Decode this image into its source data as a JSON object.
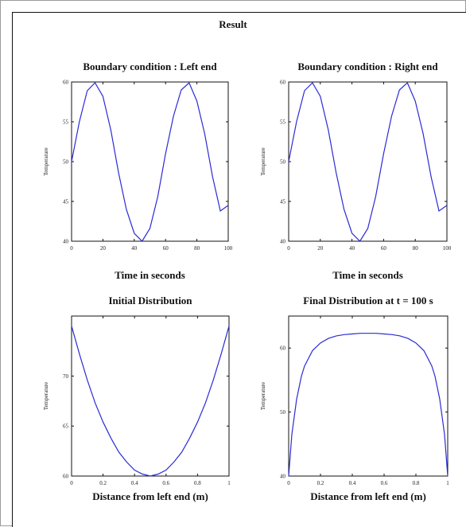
{
  "figure": {
    "title": "Result"
  },
  "chart_data": [
    {
      "type": "line",
      "title": "Boundary condition : Left end",
      "xlabel": "Time in seconds",
      "ylabel": "Temperature",
      "xlim": [
        0,
        100
      ],
      "ylim": [
        40,
        60
      ],
      "xticks": [
        0,
        20,
        40,
        60,
        80,
        100
      ],
      "yticks": [
        40,
        45,
        50,
        55,
        60
      ],
      "grid": false,
      "series": [
        {
          "x": [
            0,
            5,
            10,
            15,
            20,
            25,
            30,
            35,
            40,
            45,
            50,
            55,
            60,
            65,
            70,
            75,
            80,
            85,
            90,
            95,
            100
          ],
          "y": [
            50,
            55.0,
            58.9,
            59.9,
            58.2,
            54.0,
            48.6,
            44.0,
            41.0,
            40.0,
            41.6,
            45.6,
            51.0,
            55.7,
            59.0,
            59.9,
            57.6,
            53.5,
            48.1,
            43.8,
            44.5
          ]
        }
      ]
    },
    {
      "type": "line",
      "title": "Boundary condition : Right end",
      "xlabel": "Time in seconds",
      "ylabel": "Temperature",
      "xlim": [
        0,
        100
      ],
      "ylim": [
        40,
        60
      ],
      "xticks": [
        0,
        20,
        40,
        60,
        80,
        100
      ],
      "yticks": [
        40,
        45,
        50,
        55,
        60
      ],
      "grid": false,
      "series": [
        {
          "x": [
            0,
            5,
            10,
            15,
            20,
            25,
            30,
            35,
            40,
            45,
            50,
            55,
            60,
            65,
            70,
            75,
            80,
            85,
            90,
            95,
            100
          ],
          "y": [
            50,
            55.0,
            58.9,
            59.9,
            58.2,
            54.0,
            48.6,
            44.0,
            41.0,
            40.0,
            41.6,
            45.6,
            51.0,
            55.7,
            59.0,
            59.9,
            57.6,
            53.5,
            48.1,
            43.8,
            44.5
          ]
        }
      ]
    },
    {
      "type": "line",
      "title": "Initial Distribution",
      "xlabel": "Distance from left end (m)",
      "ylabel": "Temperature",
      "xlim": [
        0,
        1
      ],
      "ylim": [
        60,
        76
      ],
      "xticks": [
        0,
        0.2,
        0.4,
        0.6,
        0.8,
        1
      ],
      "yticks": [
        60,
        65,
        70
      ],
      "grid": false,
      "series": [
        {
          "x": [
            0,
            0.05,
            0.1,
            0.15,
            0.2,
            0.25,
            0.3,
            0.35,
            0.4,
            0.45,
            0.5,
            0.55,
            0.6,
            0.65,
            0.7,
            0.75,
            0.8,
            0.85,
            0.9,
            0.95,
            1
          ],
          "y": [
            75,
            72.2,
            69.6,
            67.3,
            65.4,
            63.8,
            62.4,
            61.4,
            60.6,
            60.2,
            60,
            60.2,
            60.6,
            61.4,
            62.4,
            63.8,
            65.4,
            67.3,
            69.6,
            72.2,
            75
          ]
        }
      ]
    },
    {
      "type": "line",
      "title": "Final Distribution at t = 100 s",
      "xlabel": "Distance from left end (m)",
      "ylabel": "Temperature",
      "xlim": [
        0,
        1
      ],
      "ylim": [
        40,
        65
      ],
      "xticks": [
        0,
        0.2,
        0.4,
        0.6,
        0.8,
        1
      ],
      "yticks": [
        40,
        50,
        60
      ],
      "grid": false,
      "series": [
        {
          "x": [
            0,
            0.02,
            0.05,
            0.08,
            0.1,
            0.15,
            0.2,
            0.25,
            0.3,
            0.35,
            0.4,
            0.45,
            0.5,
            0.55,
            0.6,
            0.65,
            0.7,
            0.75,
            0.8,
            0.85,
            0.9,
            0.92,
            0.95,
            0.98,
            1
          ],
          "y": [
            40,
            46.5,
            52.0,
            55.6,
            57.2,
            59.6,
            60.8,
            61.5,
            61.9,
            62.1,
            62.2,
            62.3,
            62.3,
            62.3,
            62.2,
            62.1,
            61.9,
            61.5,
            60.8,
            59.6,
            57.2,
            55.6,
            52.0,
            46.5,
            40
          ]
        }
      ]
    }
  ]
}
